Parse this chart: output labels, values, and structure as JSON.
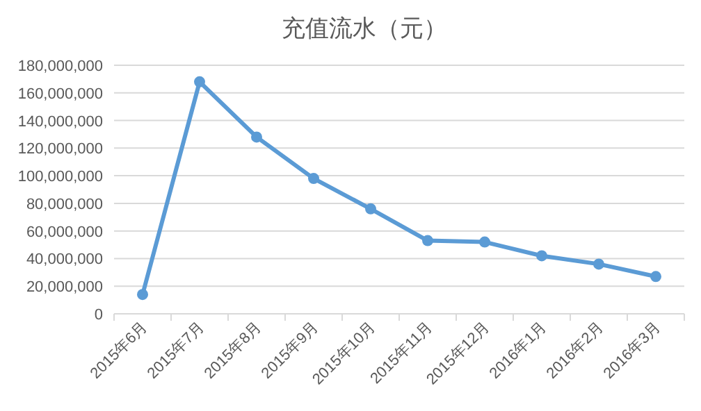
{
  "chart_data": {
    "type": "line",
    "title": "充值流水（元）",
    "categories": [
      "2015年6月",
      "2015年7月",
      "2015年8月",
      "2015年9月",
      "2015年10月",
      "2015年11月",
      "2015年12月",
      "2016年1月",
      "2016年2月",
      "2016年3月"
    ],
    "series": [
      {
        "color": "#5b9bd5",
        "values": [
          14000000,
          168000000,
          128000000,
          98000000,
          76000000,
          53000000,
          52000000,
          42000000,
          36000000,
          27000000
        ]
      }
    ],
    "ylim": [
      0,
      180000000
    ],
    "yticks": [
      {
        "value": 0,
        "label": "0"
      },
      {
        "value": 20000000,
        "label": "20,000,000"
      },
      {
        "value": 40000000,
        "label": "40,000,000"
      },
      {
        "value": 60000000,
        "label": "60,000,000"
      },
      {
        "value": 80000000,
        "label": "80,000,000"
      },
      {
        "value": 100000000,
        "label": "100,000,000"
      },
      {
        "value": 120000000,
        "label": "120,000,000"
      },
      {
        "value": 140000000,
        "label": "140,000,000"
      },
      {
        "value": 160000000,
        "label": "160,000,000"
      },
      {
        "value": 180000000,
        "label": "180,000,000"
      }
    ],
    "grid": "y",
    "marker": "circle",
    "line_style": "solid"
  }
}
